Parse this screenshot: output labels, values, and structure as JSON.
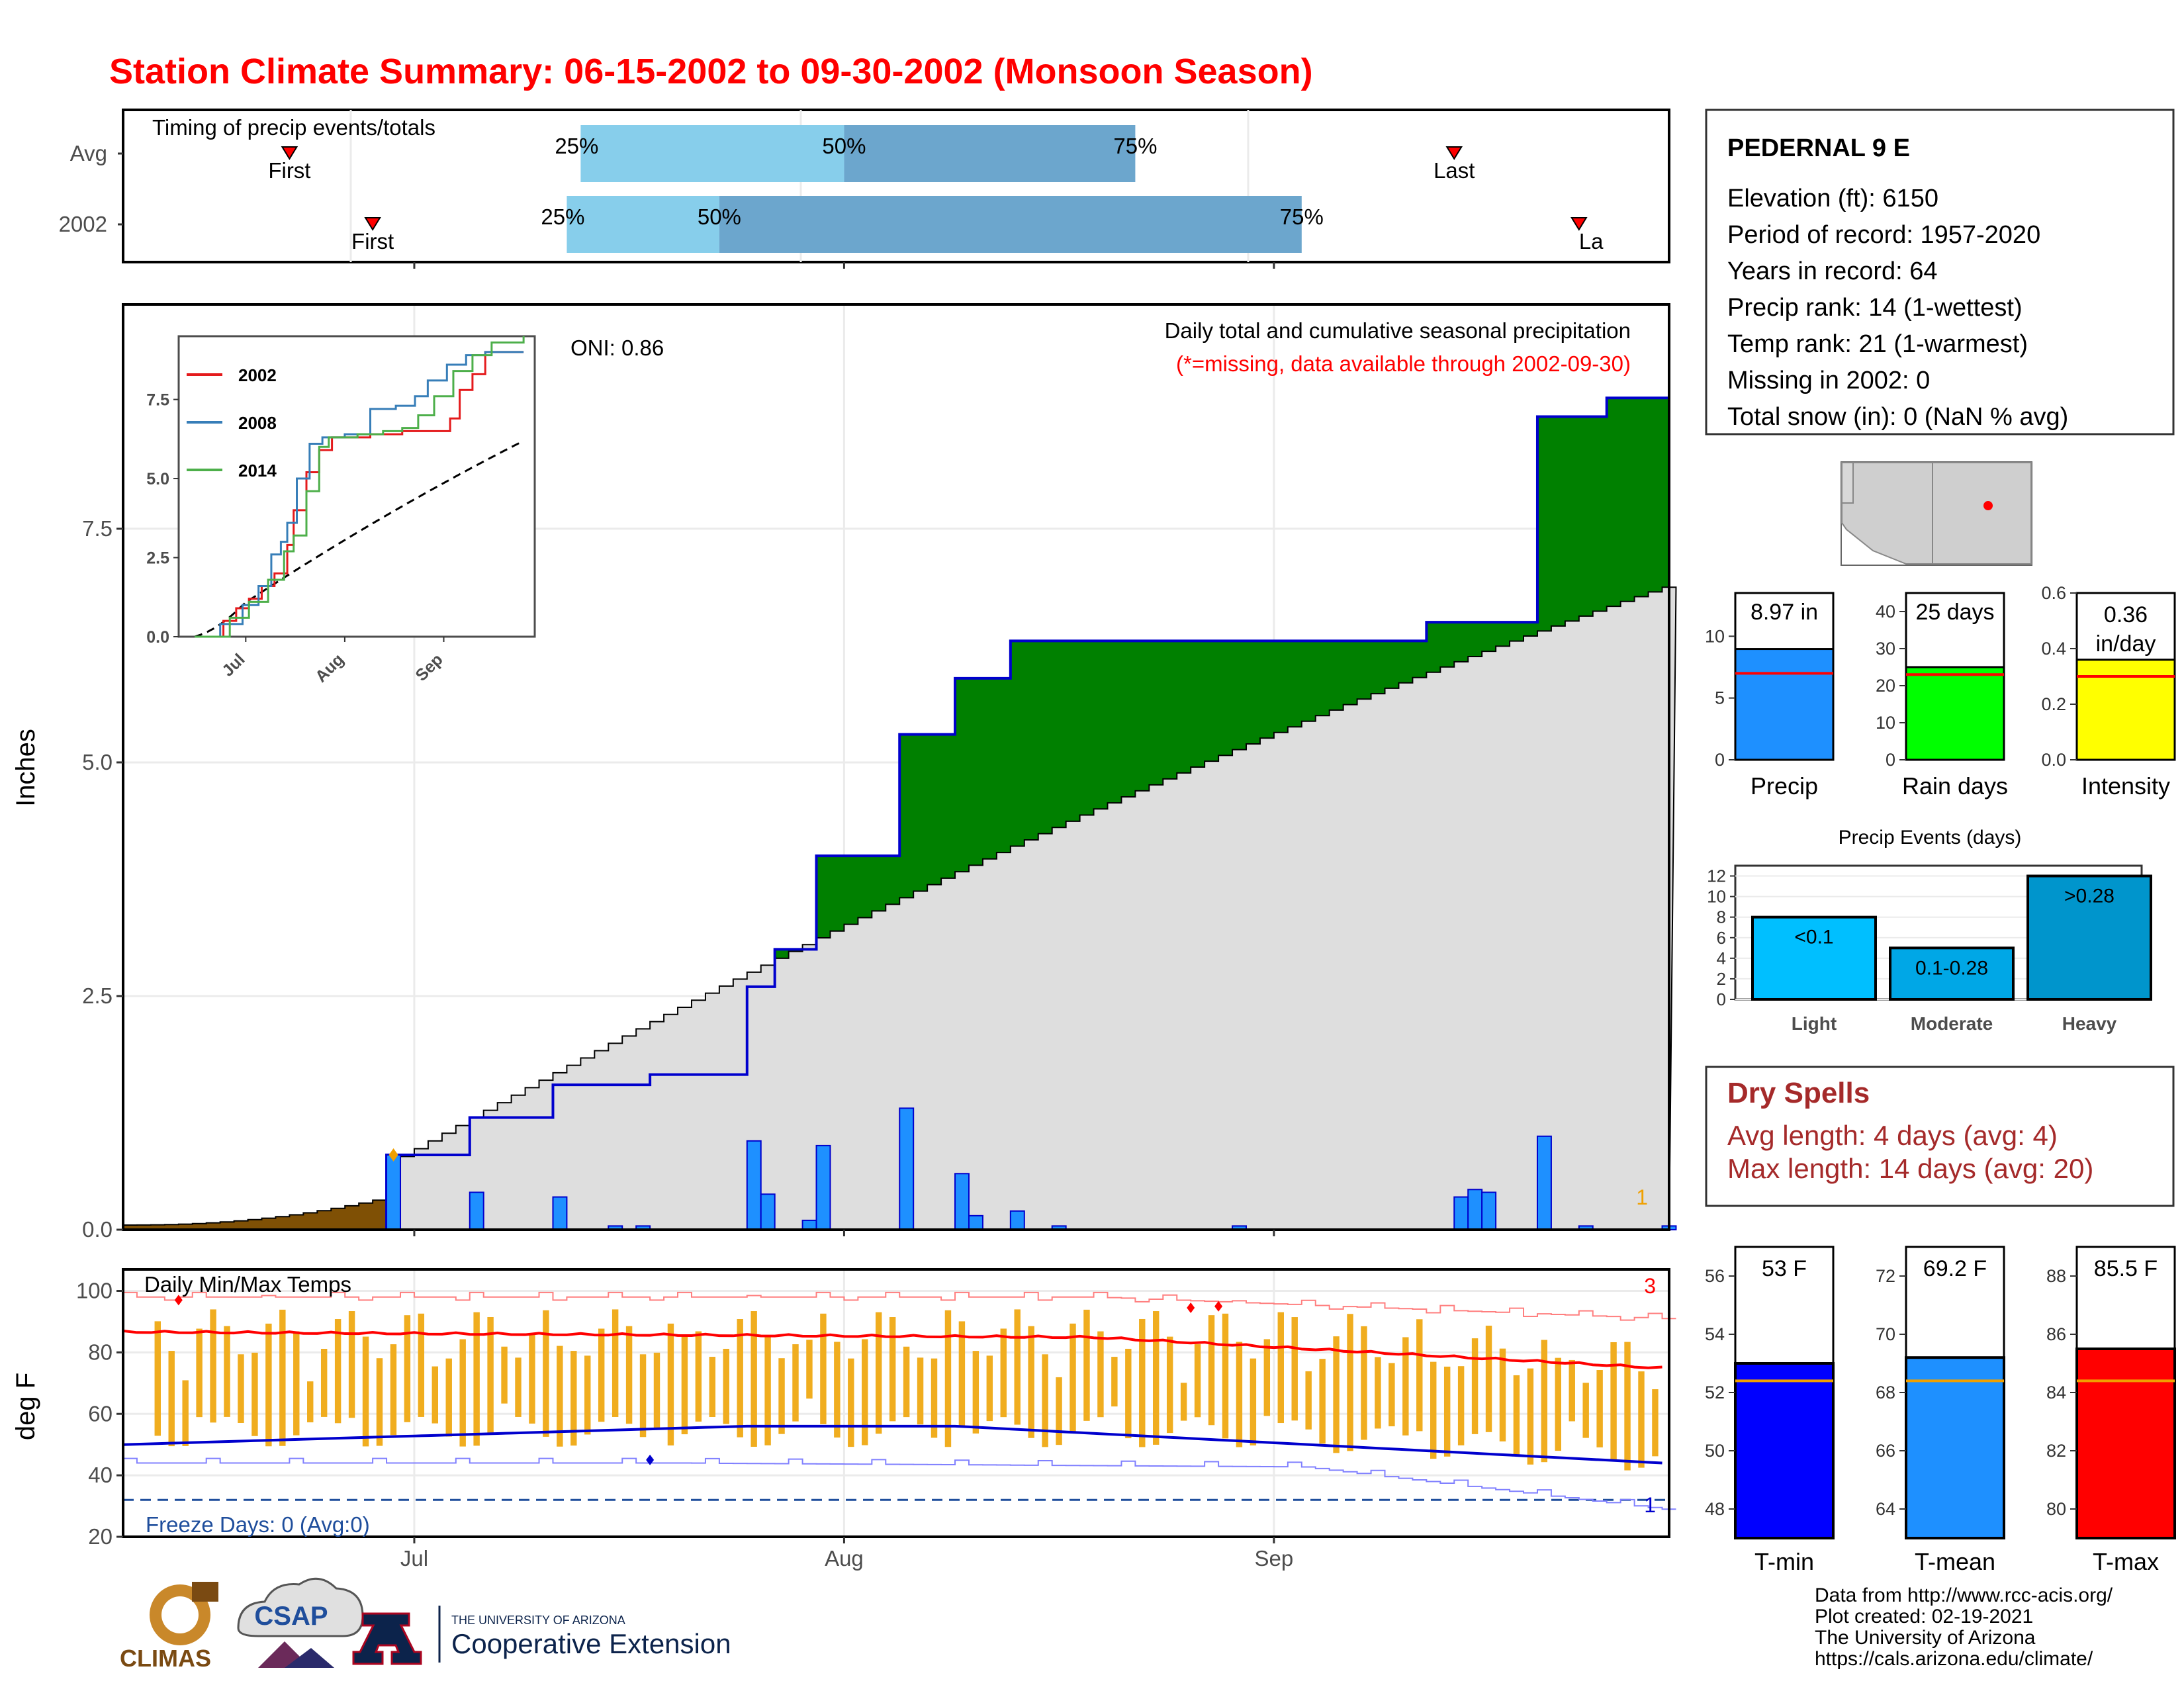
{
  "title": "Station Climate Summary: 06-15-2002 to 09-30-2002 (Monsoon Season)",
  "colors": {
    "title": "#ff0000",
    "cumulative_fill": "#008000",
    "cumulative_line": "#0000cd",
    "avg_fill": "#dedede",
    "daily_bar": "#1e90ff",
    "pre_season_fill": "#7f5005",
    "temp_bar": "#f0ad1f",
    "max_line": "#ff0000",
    "min_line": "#0000cd",
    "dry_spells": "#a52a2a"
  },
  "timing": {
    "title": "Timing of precip events/totals",
    "rows": [
      {
        "label": "Avg",
        "first_label": "First",
        "last_label": "Last",
        "first_day": 12,
        "last_day": 96,
        "q25": 33,
        "q50": 52,
        "q75": 73,
        "q25_label": "25%",
        "q50_label": "50%",
        "q75_label": "75%"
      },
      {
        "label": "2002",
        "first_label": "First",
        "last_label": "La",
        "first_day": 18,
        "last_day": 105,
        "q25": 32,
        "q50": 43,
        "q75": 85,
        "q25_label": "25%",
        "q50_label": "50%",
        "q75_label": "75%"
      }
    ]
  },
  "precip": {
    "ylabel": "Inches",
    "yticks": [
      "0.0",
      "2.5",
      "5.0",
      "7.5"
    ],
    "ylim": [
      0,
      9.9
    ],
    "oni": "ONI: 0.86",
    "note_title": "Daily total and cumulative seasonal precipitation",
    "note_missing": "(*=missing, data available through 2002-09-30)",
    "corner_count": "1",
    "xticks": [
      "Jul",
      "Aug",
      "Sep"
    ]
  },
  "inset": {
    "yticks": [
      "0.0",
      "2.5",
      "5.0",
      "7.5"
    ],
    "xticks": [
      "Jul",
      "Aug",
      "Sep"
    ],
    "ylim": [
      0,
      9.5
    ],
    "legend": [
      {
        "name": "2002",
        "color": "#e41a1c"
      },
      {
        "name": "2008",
        "color": "#377eb8"
      },
      {
        "name": "2014",
        "color": "#4daf4a"
      }
    ]
  },
  "station": {
    "name": "PEDERNAL 9 E",
    "lines": [
      "Elevation (ft): 6150",
      "Period of record: 1957-2020",
      "Years in record: 64",
      "Precip rank: 14 (1-wettest)",
      "Temp rank: 21 (1-warmest)",
      "Missing in 2002: 0",
      "Total snow (in): 0 (NaN % avg)"
    ]
  },
  "summary_bars": [
    {
      "name": "Precip",
      "value": 8.97,
      "avg": 7.0,
      "label": "8.97 in",
      "yticks": [
        "0",
        "5",
        "10"
      ],
      "ymax": 13.5,
      "color": "#1e90ff"
    },
    {
      "name": "Rain days",
      "value": 25,
      "avg": 23,
      "label": "25 days",
      "yticks": [
        "0",
        "10",
        "20",
        "30",
        "40"
      ],
      "ymax": 45,
      "color": "#00ff00"
    },
    {
      "name": "Intensity",
      "value": 0.36,
      "avg": 0.3,
      "label": "0.36 in/day",
      "yticks": [
        "0.0",
        "0.2",
        "0.4",
        "0.6"
      ],
      "ymax": 0.6,
      "color": "#ffff00"
    }
  ],
  "precip_events": {
    "title": "Precip Events (days)",
    "yticks": [
      "0",
      "2",
      "4",
      "6",
      "8",
      "10",
      "12"
    ],
    "categories": [
      "Light",
      "Moderate",
      "Heavy"
    ],
    "values": [
      8,
      5,
      12
    ],
    "labels": [
      "<0.1",
      "0.1-0.28",
      ">0.28"
    ],
    "colors": [
      "#00bfff",
      "#00a7e6",
      "#0095cc"
    ]
  },
  "dry_spells": {
    "title": "Dry Spells",
    "avg": "Avg length: 4 days (avg: 4)",
    "max": "Max length: 14 days (avg: 20)"
  },
  "temps": {
    "title": "Daily Min/Max Temps",
    "ylabel": "deg F",
    "yticks": [
      "20",
      "40",
      "60",
      "80",
      "100"
    ],
    "ylim": [
      20,
      107
    ],
    "freeze": "Freeze Days: 0 (Avg:0)",
    "count_hi": "3",
    "count_lo": "1",
    "xticks": [
      "Jul",
      "Aug",
      "Sep"
    ]
  },
  "temp_bars": [
    {
      "name": "T-min",
      "value": 53,
      "avg": 52.4,
      "label": "53 F",
      "yticks": [
        "48",
        "50",
        "52",
        "54",
        "56"
      ],
      "ylim": [
        47,
        57
      ],
      "color": "#0000ff"
    },
    {
      "name": "T-mean",
      "value": 69.2,
      "avg": 68.4,
      "label": "69.2 F",
      "yticks": [
        "64",
        "66",
        "68",
        "70",
        "72"
      ],
      "ylim": [
        63,
        73
      ],
      "color": "#1e90ff"
    },
    {
      "name": "T-max",
      "value": 85.5,
      "avg": 84.4,
      "label": "85.5 F",
      "yticks": [
        "80",
        "82",
        "84",
        "86",
        "88"
      ],
      "ylim": [
        79,
        89
      ],
      "color": "#ff0000"
    }
  ],
  "chart_data": {
    "type": "area",
    "title": "Daily total and cumulative seasonal precipitation",
    "xlabel": "",
    "ylabel": "Inches",
    "ylim": [
      0,
      9.9
    ],
    "x": [
      "06-10",
      "06-15",
      "06-20",
      "06-25",
      "06-30",
      "07-05",
      "07-10",
      "07-15",
      "07-20",
      "07-25",
      "07-30",
      "08-04",
      "08-09",
      "08-14",
      "08-19",
      "08-24",
      "08-29",
      "09-03",
      "09-08",
      "09-13",
      "09-18",
      "09-23",
      "09-28"
    ],
    "cumulative_2002": [
      {
        "day": 19,
        "value": 0.8
      },
      {
        "day": 25,
        "value": 1.2
      },
      {
        "day": 31,
        "value": 1.55
      },
      {
        "day": 38,
        "value": 1.66
      },
      {
        "day": 45,
        "value": 2.6
      },
      {
        "day": 47,
        "value": 3.0
      },
      {
        "day": 50,
        "value": 4.0
      },
      {
        "day": 56,
        "value": 5.3
      },
      {
        "day": 60,
        "value": 5.9
      },
      {
        "day": 64,
        "value": 6.3
      },
      {
        "day": 94,
        "value": 6.5
      },
      {
        "day": 102,
        "value": 8.7
      },
      {
        "day": 107,
        "value": 8.9
      }
    ],
    "avg_cumulative_end": 6.9,
    "daily_2002": [
      {
        "day": 19,
        "value": 0.8
      },
      {
        "day": 25,
        "value": 0.4
      },
      {
        "day": 31,
        "value": 0.35
      },
      {
        "day": 45,
        "value": 0.95
      },
      {
        "day": 46,
        "value": 0.38
      },
      {
        "day": 49,
        "value": 0.1
      },
      {
        "day": 50,
        "value": 0.9
      },
      {
        "day": 56,
        "value": 1.3
      },
      {
        "day": 60,
        "value": 0.6
      },
      {
        "day": 61,
        "value": 0.15
      },
      {
        "day": 64,
        "value": 0.2
      },
      {
        "day": 96,
        "value": 0.35
      },
      {
        "day": 97,
        "value": 0.43
      },
      {
        "day": 98,
        "value": 0.4
      },
      {
        "day": 102,
        "value": 1.0
      }
    ]
  }
}
